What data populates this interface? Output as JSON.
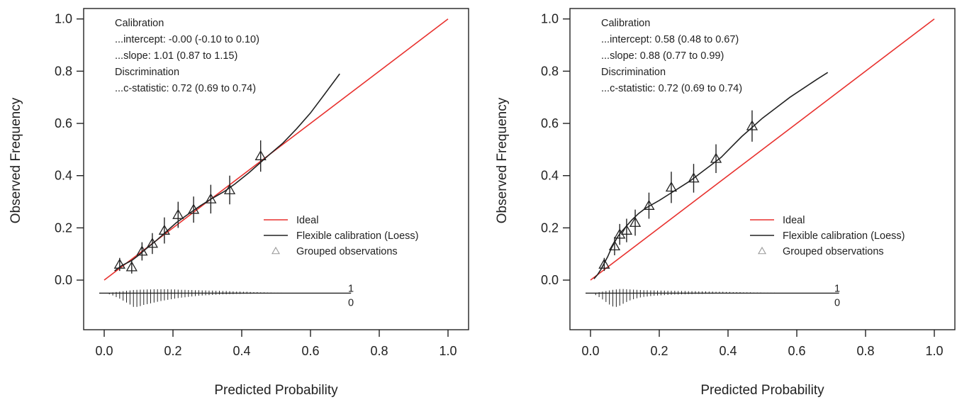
{
  "chart_data": [
    {
      "type": "line",
      "xlabel": "Predicted Probability",
      "ylabel": "Observed Frequency",
      "xlim": [
        0,
        1
      ],
      "ylim": [
        -0.19,
        1.04
      ],
      "x_ticks": [
        0.0,
        0.2,
        0.4,
        0.6,
        0.8,
        1.0
      ],
      "x_tick_labels": [
        "0.0",
        "0.2",
        "0.4",
        "0.6",
        "0.8",
        "1.0"
      ],
      "y_ticks": [
        0.0,
        0.2,
        0.4,
        0.6,
        0.8,
        1.0
      ],
      "y_tick_labels": [
        "0.0",
        "0.2",
        "0.4",
        "0.6",
        "0.8",
        "1.0"
      ],
      "grid": false,
      "legend_position": "bottom-right",
      "annotation_lines": [
        "Calibration",
        "...intercept: -0.00 (-0.10 to 0.10)",
        "...slope: 1.01 (0.87 to 1.15)",
        "Discrimination",
        "...c-statistic: 0.72 (0.69 to 0.74)"
      ],
      "series": [
        {
          "name": "Ideal",
          "kind": "line",
          "color": "#e8312e",
          "x": [
            0.0,
            1.0
          ],
          "y": [
            0.0,
            1.0
          ]
        },
        {
          "name": "Flexible calibration (Loess)",
          "kind": "line",
          "color": "#222222",
          "x": [
            0.03,
            0.05,
            0.08,
            0.1,
            0.12,
            0.15,
            0.18,
            0.21,
            0.25,
            0.28,
            0.31,
            0.35,
            0.38,
            0.42,
            0.45,
            0.48,
            0.52,
            0.56,
            0.6,
            0.64,
            0.685
          ],
          "y": [
            0.035,
            0.055,
            0.075,
            0.095,
            0.118,
            0.15,
            0.185,
            0.22,
            0.258,
            0.285,
            0.31,
            0.34,
            0.368,
            0.41,
            0.445,
            0.48,
            0.525,
            0.58,
            0.64,
            0.71,
            0.79
          ]
        },
        {
          "name": "Grouped observations",
          "kind": "points",
          "marker": "triangle",
          "color": "#222222",
          "points": [
            {
              "x": 0.045,
              "y": 0.06,
              "lo": 0.035,
              "hi": 0.085
            },
            {
              "x": 0.08,
              "y": 0.05,
              "lo": 0.025,
              "hi": 0.075
            },
            {
              "x": 0.11,
              "y": 0.11,
              "lo": 0.075,
              "hi": 0.145
            },
            {
              "x": 0.14,
              "y": 0.14,
              "lo": 0.1,
              "hi": 0.18
            },
            {
              "x": 0.175,
              "y": 0.19,
              "lo": 0.14,
              "hi": 0.24
            },
            {
              "x": 0.215,
              "y": 0.25,
              "lo": 0.2,
              "hi": 0.3
            },
            {
              "x": 0.26,
              "y": 0.27,
              "lo": 0.22,
              "hi": 0.32
            },
            {
              "x": 0.31,
              "y": 0.31,
              "lo": 0.255,
              "hi": 0.365
            },
            {
              "x": 0.365,
              "y": 0.345,
              "lo": 0.29,
              "hi": 0.4
            },
            {
              "x": 0.455,
              "y": 0.475,
              "lo": 0.415,
              "hi": 0.535
            }
          ]
        }
      ],
      "spike_histogram": {
        "baseline": -0.05,
        "x_end": 0.685,
        "label_top": "1",
        "label_bottom": "0",
        "x": [
          0.0,
          0.01,
          0.02,
          0.03,
          0.04,
          0.05,
          0.06,
          0.07,
          0.08,
          0.09,
          0.1,
          0.11,
          0.12,
          0.13,
          0.14,
          0.15,
          0.16,
          0.17,
          0.18,
          0.19,
          0.2,
          0.21,
          0.22,
          0.23,
          0.24,
          0.25,
          0.26,
          0.27,
          0.28,
          0.29,
          0.3,
          0.31,
          0.32,
          0.33,
          0.34,
          0.35,
          0.36,
          0.37,
          0.38,
          0.39,
          0.4,
          0.41,
          0.42,
          0.43,
          0.44,
          0.45,
          0.46,
          0.47,
          0.48,
          0.49,
          0.5,
          0.51,
          0.52,
          0.53,
          0.54,
          0.55,
          0.56,
          0.57,
          0.58,
          0.59,
          0.6,
          0.61,
          0.62,
          0.63,
          0.64,
          0.65,
          0.66,
          0.67,
          0.68
        ],
        "ones": [
          0.0,
          0.002,
          0.004,
          0.006,
          0.008,
          0.01,
          0.012,
          0.014,
          0.016,
          0.017,
          0.018,
          0.018,
          0.019,
          0.019,
          0.02,
          0.02,
          0.02,
          0.02,
          0.02,
          0.019,
          0.019,
          0.018,
          0.017,
          0.017,
          0.016,
          0.016,
          0.015,
          0.015,
          0.014,
          0.014,
          0.013,
          0.013,
          0.012,
          0.012,
          0.011,
          0.011,
          0.01,
          0.009,
          0.008,
          0.008,
          0.007,
          0.007,
          0.006,
          0.005,
          0.005,
          0.004,
          0.004,
          0.003,
          0.003,
          0.002,
          0.002,
          0.002,
          0.001,
          0.001,
          0.001,
          0.001,
          0.001,
          0.0,
          0.0,
          0.0,
          0.0,
          0.0,
          0.0,
          0.0,
          0.0,
          0.0,
          0.0,
          0.0,
          0.0
        ],
        "zeros": [
          0.0,
          0.006,
          0.012,
          0.02,
          0.028,
          0.038,
          0.048,
          0.058,
          0.07,
          0.07,
          0.066,
          0.06,
          0.056,
          0.052,
          0.048,
          0.044,
          0.04,
          0.037,
          0.034,
          0.031,
          0.028,
          0.025,
          0.023,
          0.021,
          0.019,
          0.017,
          0.015,
          0.013,
          0.012,
          0.011,
          0.01,
          0.009,
          0.008,
          0.007,
          0.006,
          0.006,
          0.005,
          0.005,
          0.004,
          0.004,
          0.003,
          0.003,
          0.003,
          0.002,
          0.002,
          0.002,
          0.002,
          0.001,
          0.001,
          0.001,
          0.001,
          0.001,
          0.0,
          0.0,
          0.0,
          0.0,
          0.0,
          0.0,
          0.0,
          0.0,
          0.0,
          0.0,
          0.0,
          0.0,
          0.0,
          0.0,
          0.0,
          0.0,
          0.0
        ]
      }
    },
    {
      "type": "line",
      "xlabel": "Predicted Probability",
      "ylabel": "Observed Frequency",
      "xlim": [
        0,
        1
      ],
      "ylim": [
        -0.19,
        1.04
      ],
      "x_ticks": [
        0.0,
        0.2,
        0.4,
        0.6,
        0.8,
        1.0
      ],
      "x_tick_labels": [
        "0.0",
        "0.2",
        "0.4",
        "0.6",
        "0.8",
        "1.0"
      ],
      "y_ticks": [
        0.0,
        0.2,
        0.4,
        0.6,
        0.8,
        1.0
      ],
      "y_tick_labels": [
        "0.0",
        "0.2",
        "0.4",
        "0.6",
        "0.8",
        "1.0"
      ],
      "grid": false,
      "legend_position": "bottom-right",
      "annotation_lines": [
        "Calibration",
        "...intercept: 0.58 (0.48 to 0.67)",
        "...slope: 0.88 (0.77 to 0.99)",
        "Discrimination",
        "...c-statistic: 0.72 (0.69 to 0.74)"
      ],
      "series": [
        {
          "name": "Ideal",
          "kind": "line",
          "color": "#e8312e",
          "x": [
            0.0,
            1.0
          ],
          "y": [
            0.0,
            1.0
          ]
        },
        {
          "name": "Flexible calibration (Loess)",
          "kind": "line",
          "color": "#222222",
          "x": [
            0.01,
            0.02,
            0.03,
            0.04,
            0.05,
            0.06,
            0.07,
            0.08,
            0.09,
            0.1,
            0.12,
            0.14,
            0.16,
            0.18,
            0.2,
            0.23,
            0.26,
            0.29,
            0.32,
            0.35,
            0.38,
            0.41,
            0.44,
            0.47,
            0.5,
            0.54,
            0.58,
            0.62,
            0.66,
            0.69
          ],
          "y": [
            0.005,
            0.02,
            0.04,
            0.065,
            0.09,
            0.12,
            0.145,
            0.168,
            0.185,
            0.2,
            0.23,
            0.255,
            0.275,
            0.29,
            0.305,
            0.33,
            0.355,
            0.38,
            0.41,
            0.44,
            0.47,
            0.51,
            0.55,
            0.585,
            0.62,
            0.66,
            0.7,
            0.735,
            0.77,
            0.795
          ]
        },
        {
          "name": "Grouped observations",
          "kind": "points",
          "marker": "triangle",
          "color": "#222222",
          "points": [
            {
              "x": 0.04,
              "y": 0.06,
              "lo": 0.035,
              "hi": 0.085
            },
            {
              "x": 0.07,
              "y": 0.13,
              "lo": 0.095,
              "hi": 0.165
            },
            {
              "x": 0.085,
              "y": 0.175,
              "lo": 0.135,
              "hi": 0.215
            },
            {
              "x": 0.105,
              "y": 0.19,
              "lo": 0.145,
              "hi": 0.235
            },
            {
              "x": 0.13,
              "y": 0.22,
              "lo": 0.17,
              "hi": 0.27
            },
            {
              "x": 0.17,
              "y": 0.285,
              "lo": 0.235,
              "hi": 0.335
            },
            {
              "x": 0.235,
              "y": 0.355,
              "lo": 0.295,
              "hi": 0.415
            },
            {
              "x": 0.3,
              "y": 0.39,
              "lo": 0.335,
              "hi": 0.445
            },
            {
              "x": 0.365,
              "y": 0.465,
              "lo": 0.41,
              "hi": 0.52
            },
            {
              "x": 0.47,
              "y": 0.59,
              "lo": 0.53,
              "hi": 0.65
            }
          ]
        }
      ],
      "spike_histogram": {
        "baseline": -0.05,
        "x_end": 0.69,
        "label_top": "1",
        "label_bottom": "0",
        "x": [
          0.0,
          0.01,
          0.02,
          0.03,
          0.04,
          0.05,
          0.06,
          0.07,
          0.08,
          0.09,
          0.1,
          0.11,
          0.12,
          0.13,
          0.14,
          0.15,
          0.16,
          0.17,
          0.18,
          0.19,
          0.2,
          0.21,
          0.22,
          0.23,
          0.24,
          0.25,
          0.26,
          0.27,
          0.28,
          0.29,
          0.3,
          0.31,
          0.32,
          0.33,
          0.34,
          0.35,
          0.36,
          0.37,
          0.38,
          0.39,
          0.4,
          0.41,
          0.42,
          0.43,
          0.44,
          0.45,
          0.46,
          0.47,
          0.48,
          0.49,
          0.5,
          0.51,
          0.52,
          0.53,
          0.54,
          0.55,
          0.56,
          0.57,
          0.58,
          0.59,
          0.6,
          0.61,
          0.62,
          0.63,
          0.64,
          0.65,
          0.66,
          0.67,
          0.68
        ],
        "ones": [
          0.0,
          0.002,
          0.005,
          0.008,
          0.011,
          0.014,
          0.017,
          0.019,
          0.021,
          0.021,
          0.02,
          0.019,
          0.018,
          0.017,
          0.016,
          0.015,
          0.015,
          0.014,
          0.014,
          0.013,
          0.013,
          0.013,
          0.012,
          0.012,
          0.012,
          0.011,
          0.011,
          0.011,
          0.01,
          0.01,
          0.01,
          0.009,
          0.009,
          0.009,
          0.008,
          0.008,
          0.007,
          0.007,
          0.007,
          0.006,
          0.006,
          0.005,
          0.005,
          0.005,
          0.004,
          0.004,
          0.004,
          0.003,
          0.003,
          0.003,
          0.002,
          0.002,
          0.002,
          0.002,
          0.001,
          0.001,
          0.001,
          0.001,
          0.001,
          0.0,
          0.0,
          0.0,
          0.0,
          0.0,
          0.0,
          0.0,
          0.0,
          0.0,
          0.0
        ],
        "zeros": [
          0.0,
          0.01,
          0.02,
          0.032,
          0.045,
          0.058,
          0.068,
          0.07,
          0.064,
          0.054,
          0.045,
          0.037,
          0.031,
          0.026,
          0.022,
          0.019,
          0.017,
          0.015,
          0.013,
          0.012,
          0.011,
          0.01,
          0.009,
          0.008,
          0.007,
          0.007,
          0.006,
          0.006,
          0.005,
          0.005,
          0.004,
          0.004,
          0.004,
          0.003,
          0.003,
          0.003,
          0.002,
          0.002,
          0.002,
          0.002,
          0.002,
          0.001,
          0.001,
          0.001,
          0.001,
          0.001,
          0.001,
          0.0,
          0.0,
          0.0,
          0.0,
          0.0,
          0.0,
          0.0,
          0.0,
          0.0,
          0.0,
          0.0,
          0.0,
          0.0,
          0.0,
          0.0,
          0.0,
          0.0,
          0.0,
          0.0,
          0.0,
          0.0,
          0.0
        ]
      }
    }
  ]
}
